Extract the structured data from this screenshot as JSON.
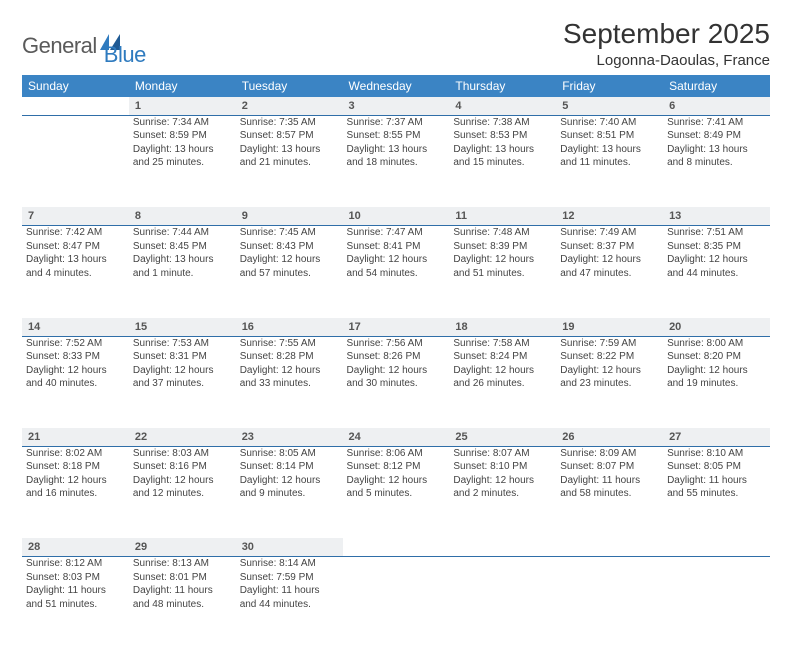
{
  "brand": {
    "part1": "General",
    "part2": "Blue"
  },
  "title": "September 2025",
  "location": "Logonna-Daoulas, France",
  "colors": {
    "header_bg": "#3b84c4",
    "rule": "#2f6ea8",
    "daybar_bg": "#eef0f2",
    "brand_blue": "#2f7bbf",
    "brand_gray": "#5a5a5a",
    "text": "#444444",
    "page_bg": "#ffffff"
  },
  "weekdays": [
    "Sunday",
    "Monday",
    "Tuesday",
    "Wednesday",
    "Thursday",
    "Friday",
    "Saturday"
  ],
  "weeks": [
    {
      "nums": [
        "",
        "1",
        "2",
        "3",
        "4",
        "5",
        "6"
      ],
      "cells": [
        null,
        {
          "sunrise": "Sunrise: 7:34 AM",
          "sunset": "Sunset: 8:59 PM",
          "day1": "Daylight: 13 hours",
          "day2": "and 25 minutes."
        },
        {
          "sunrise": "Sunrise: 7:35 AM",
          "sunset": "Sunset: 8:57 PM",
          "day1": "Daylight: 13 hours",
          "day2": "and 21 minutes."
        },
        {
          "sunrise": "Sunrise: 7:37 AM",
          "sunset": "Sunset: 8:55 PM",
          "day1": "Daylight: 13 hours",
          "day2": "and 18 minutes."
        },
        {
          "sunrise": "Sunrise: 7:38 AM",
          "sunset": "Sunset: 8:53 PM",
          "day1": "Daylight: 13 hours",
          "day2": "and 15 minutes."
        },
        {
          "sunrise": "Sunrise: 7:40 AM",
          "sunset": "Sunset: 8:51 PM",
          "day1": "Daylight: 13 hours",
          "day2": "and 11 minutes."
        },
        {
          "sunrise": "Sunrise: 7:41 AM",
          "sunset": "Sunset: 8:49 PM",
          "day1": "Daylight: 13 hours",
          "day2": "and 8 minutes."
        }
      ]
    },
    {
      "nums": [
        "7",
        "8",
        "9",
        "10",
        "11",
        "12",
        "13"
      ],
      "cells": [
        {
          "sunrise": "Sunrise: 7:42 AM",
          "sunset": "Sunset: 8:47 PM",
          "day1": "Daylight: 13 hours",
          "day2": "and 4 minutes."
        },
        {
          "sunrise": "Sunrise: 7:44 AM",
          "sunset": "Sunset: 8:45 PM",
          "day1": "Daylight: 13 hours",
          "day2": "and 1 minute."
        },
        {
          "sunrise": "Sunrise: 7:45 AM",
          "sunset": "Sunset: 8:43 PM",
          "day1": "Daylight: 12 hours",
          "day2": "and 57 minutes."
        },
        {
          "sunrise": "Sunrise: 7:47 AM",
          "sunset": "Sunset: 8:41 PM",
          "day1": "Daylight: 12 hours",
          "day2": "and 54 minutes."
        },
        {
          "sunrise": "Sunrise: 7:48 AM",
          "sunset": "Sunset: 8:39 PM",
          "day1": "Daylight: 12 hours",
          "day2": "and 51 minutes."
        },
        {
          "sunrise": "Sunrise: 7:49 AM",
          "sunset": "Sunset: 8:37 PM",
          "day1": "Daylight: 12 hours",
          "day2": "and 47 minutes."
        },
        {
          "sunrise": "Sunrise: 7:51 AM",
          "sunset": "Sunset: 8:35 PM",
          "day1": "Daylight: 12 hours",
          "day2": "and 44 minutes."
        }
      ]
    },
    {
      "nums": [
        "14",
        "15",
        "16",
        "17",
        "18",
        "19",
        "20"
      ],
      "cells": [
        {
          "sunrise": "Sunrise: 7:52 AM",
          "sunset": "Sunset: 8:33 PM",
          "day1": "Daylight: 12 hours",
          "day2": "and 40 minutes."
        },
        {
          "sunrise": "Sunrise: 7:53 AM",
          "sunset": "Sunset: 8:31 PM",
          "day1": "Daylight: 12 hours",
          "day2": "and 37 minutes."
        },
        {
          "sunrise": "Sunrise: 7:55 AM",
          "sunset": "Sunset: 8:28 PM",
          "day1": "Daylight: 12 hours",
          "day2": "and 33 minutes."
        },
        {
          "sunrise": "Sunrise: 7:56 AM",
          "sunset": "Sunset: 8:26 PM",
          "day1": "Daylight: 12 hours",
          "day2": "and 30 minutes."
        },
        {
          "sunrise": "Sunrise: 7:58 AM",
          "sunset": "Sunset: 8:24 PM",
          "day1": "Daylight: 12 hours",
          "day2": "and 26 minutes."
        },
        {
          "sunrise": "Sunrise: 7:59 AM",
          "sunset": "Sunset: 8:22 PM",
          "day1": "Daylight: 12 hours",
          "day2": "and 23 minutes."
        },
        {
          "sunrise": "Sunrise: 8:00 AM",
          "sunset": "Sunset: 8:20 PM",
          "day1": "Daylight: 12 hours",
          "day2": "and 19 minutes."
        }
      ]
    },
    {
      "nums": [
        "21",
        "22",
        "23",
        "24",
        "25",
        "26",
        "27"
      ],
      "cells": [
        {
          "sunrise": "Sunrise: 8:02 AM",
          "sunset": "Sunset: 8:18 PM",
          "day1": "Daylight: 12 hours",
          "day2": "and 16 minutes."
        },
        {
          "sunrise": "Sunrise: 8:03 AM",
          "sunset": "Sunset: 8:16 PM",
          "day1": "Daylight: 12 hours",
          "day2": "and 12 minutes."
        },
        {
          "sunrise": "Sunrise: 8:05 AM",
          "sunset": "Sunset: 8:14 PM",
          "day1": "Daylight: 12 hours",
          "day2": "and 9 minutes."
        },
        {
          "sunrise": "Sunrise: 8:06 AM",
          "sunset": "Sunset: 8:12 PM",
          "day1": "Daylight: 12 hours",
          "day2": "and 5 minutes."
        },
        {
          "sunrise": "Sunrise: 8:07 AM",
          "sunset": "Sunset: 8:10 PM",
          "day1": "Daylight: 12 hours",
          "day2": "and 2 minutes."
        },
        {
          "sunrise": "Sunrise: 8:09 AM",
          "sunset": "Sunset: 8:07 PM",
          "day1": "Daylight: 11 hours",
          "day2": "and 58 minutes."
        },
        {
          "sunrise": "Sunrise: 8:10 AM",
          "sunset": "Sunset: 8:05 PM",
          "day1": "Daylight: 11 hours",
          "day2": "and 55 minutes."
        }
      ]
    },
    {
      "nums": [
        "28",
        "29",
        "30",
        "",
        "",
        "",
        ""
      ],
      "cells": [
        {
          "sunrise": "Sunrise: 8:12 AM",
          "sunset": "Sunset: 8:03 PM",
          "day1": "Daylight: 11 hours",
          "day2": "and 51 minutes."
        },
        {
          "sunrise": "Sunrise: 8:13 AM",
          "sunset": "Sunset: 8:01 PM",
          "day1": "Daylight: 11 hours",
          "day2": "and 48 minutes."
        },
        {
          "sunrise": "Sunrise: 8:14 AM",
          "sunset": "Sunset: 7:59 PM",
          "day1": "Daylight: 11 hours",
          "day2": "and 44 minutes."
        },
        null,
        null,
        null,
        null
      ]
    }
  ]
}
